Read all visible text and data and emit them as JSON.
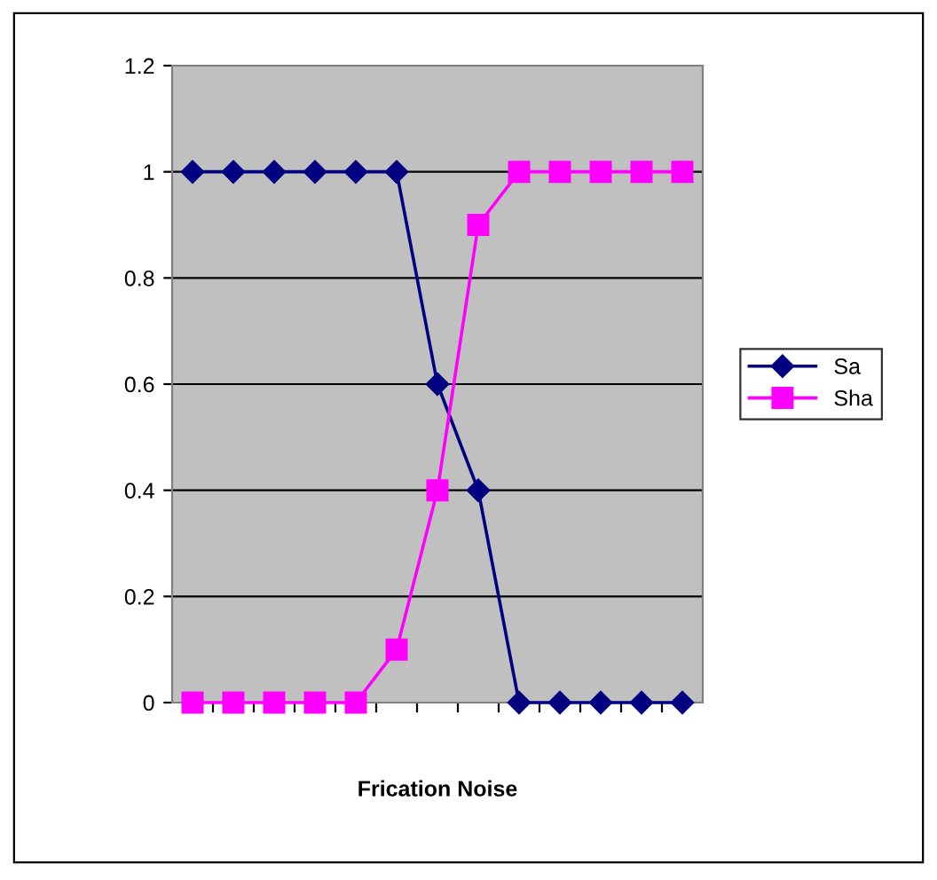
{
  "chart_data": {
    "type": "line",
    "xlabel": "Frication Noise",
    "categories": [
      null,
      null,
      null,
      null,
      null,
      null,
      null,
      null,
      null,
      null,
      null,
      null,
      null
    ],
    "series": [
      {
        "name": "Sa",
        "color": "#000080",
        "marker": "diamond",
        "values": [
          1,
          1,
          1,
          1,
          1,
          1,
          0.6,
          0.4,
          0,
          0,
          0,
          0,
          0
        ]
      },
      {
        "name": "Sha",
        "color": "#ff00ff",
        "marker": "square",
        "values": [
          0,
          0,
          0,
          0,
          0,
          0.1,
          0.4,
          0.9,
          1,
          1,
          1,
          1,
          1
        ]
      }
    ],
    "ylim": [
      0,
      1.2
    ],
    "yticks": [
      0,
      0.2,
      0.4,
      0.6,
      0.8,
      1,
      1.2
    ],
    "grid": "y",
    "legend": "right",
    "line_style": "solid"
  }
}
